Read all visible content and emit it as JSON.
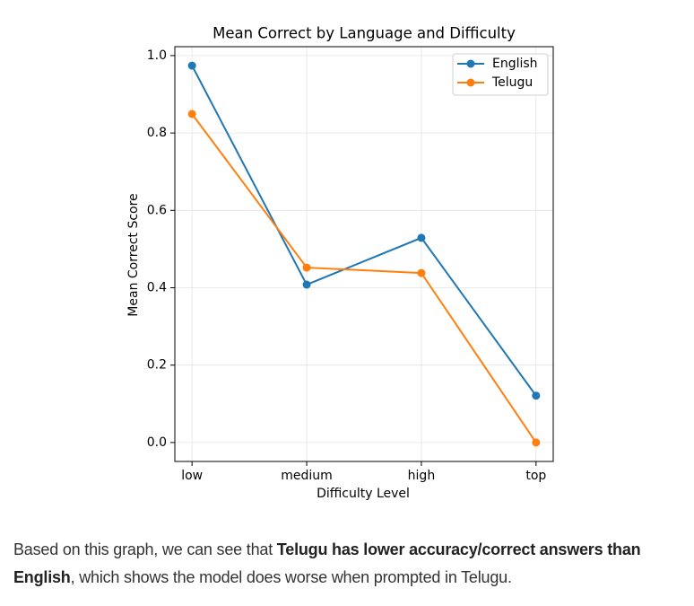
{
  "chart_data": {
    "type": "line",
    "title": "Mean Correct by Language and Difficulty",
    "x_label": "Difficulty Level",
    "y_label": "Mean Correct Score",
    "categories": [
      "low",
      "medium",
      "high",
      "top"
    ],
    "series": [
      {
        "name": "English",
        "color": "#1f77b4",
        "values": [
          0.974,
          0.408,
          0.529,
          0.121
        ]
      },
      {
        "name": "Telugu",
        "color": "#ff7f0e",
        "values": [
          0.849,
          0.452,
          0.438,
          0.0
        ]
      }
    ],
    "ylim": [
      -0.049,
      1.023
    ],
    "yticks": [
      {
        "value": 0,
        "label": "0.0"
      },
      0.2,
      0.4,
      0.6,
      0.8,
      {
        "value": 1,
        "label": "1.0"
      }
    ],
    "grid": true,
    "legend": "upper right"
  },
  "paragraph": [
    "Based on this graph, we can see that ",
    "Telugu has lower accuracy/correct answers than English",
    ", which shows the model does worse when prompted in Telugu."
  ]
}
